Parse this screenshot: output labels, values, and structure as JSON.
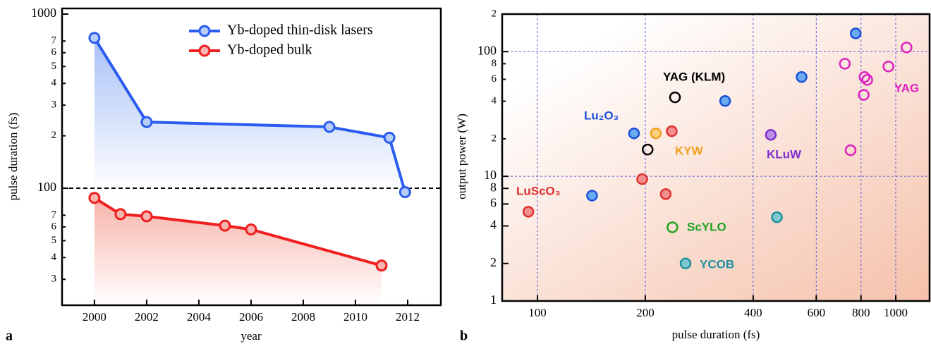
{
  "chart_data": [
    {
      "type": "line",
      "panel_label": "a",
      "xlabel": "year",
      "ylabel": "pulse duration (fs)",
      "log_y": true,
      "xlim": [
        1998.76,
        2013.27
      ],
      "ylim": [
        21.3,
        1077
      ],
      "xticks": [
        2000,
        2002,
        2004,
        2006,
        2008,
        2010,
        2012
      ],
      "yticks": [
        {
          "value": 30,
          "label": "3"
        },
        {
          "value": 40,
          "label": "4"
        },
        {
          "value": 50,
          "label": "5"
        },
        {
          "value": 60,
          "label": "6"
        },
        {
          "value": 70,
          "label": "7"
        },
        100,
        {
          "value": 200,
          "label": "2"
        },
        {
          "value": 300,
          "label": "3"
        },
        {
          "value": 400,
          "label": "4"
        },
        {
          "value": 500,
          "label": "5"
        },
        {
          "value": 600,
          "label": "6"
        },
        {
          "value": 700,
          "label": "7"
        },
        1000
      ],
      "reference_line": 100,
      "legend": "upper right",
      "series": [
        {
          "name": "Yb-doped thin-disk lasers",
          "color": "#2a5cf0",
          "fill": "#b8cdf8",
          "x": [
            2000,
            2002,
            2009,
            2011.3,
            2011.9
          ],
          "values": [
            730,
            240,
            225,
            195,
            95
          ]
        },
        {
          "name": "Yb-doped bulk",
          "color": "#f01e1e",
          "fill": "#f8b4ae",
          "x": [
            2000,
            2001,
            2002,
            2005,
            2006,
            2011
          ],
          "values": [
            88,
            71,
            69,
            61,
            58,
            36
          ]
        }
      ]
    },
    {
      "type": "scatter",
      "panel_label": "b",
      "xlabel": "pulse duration (fs)",
      "ylabel": "output power (W)",
      "log_x": true,
      "log_y": true,
      "grid": true,
      "xlim": [
        79.7,
        1243
      ],
      "ylim": [
        1,
        200
      ],
      "xticks": [
        100,
        200,
        400,
        600,
        800,
        1000
      ],
      "yticks": [
        1,
        2,
        4,
        6,
        8,
        10,
        {
          "value": 20,
          "label": "2"
        },
        {
          "value": 40,
          "label": "4"
        },
        {
          "value": 60,
          "label": "6"
        },
        {
          "value": 80,
          "label": "8"
        },
        100,
        {
          "value": 200,
          "label": "2"
        }
      ],
      "series": [
        {
          "name": "Lu₂O₃",
          "color": "#1a50d8",
          "fill": "#6aaaf0",
          "x": [
            186,
            334,
            546,
            773,
            142
          ],
          "values": [
            22.1,
            40.2,
            62.6,
            140,
            7.0
          ]
        },
        {
          "name": "YAG (KLM)",
          "color": "#000000",
          "fill": "none",
          "x": [
            242,
            203
          ],
          "values": [
            43,
            16.4
          ]
        },
        {
          "name": "KYW",
          "color": "#f0a020",
          "fill": "#f8d080",
          "x": [
            214
          ],
          "values": [
            22.1
          ]
        },
        {
          "name": "LuScO₃",
          "color": "#e03030",
          "fill": "#f09090",
          "x": [
            94.3,
            196,
            228,
            237
          ],
          "values": [
            5.2,
            9.5,
            7.2,
            23.0
          ]
        },
        {
          "name": "ScYLO",
          "color": "#20a020",
          "fill": "none",
          "x": [
            238
          ],
          "values": [
            3.9
          ]
        },
        {
          "name": "YCOB",
          "color": "#2090a0",
          "fill": "#80c8d0",
          "x": [
            259,
            466
          ],
          "values": [
            2.0,
            4.7
          ]
        },
        {
          "name": "KLuW",
          "color": "#8030d0",
          "fill": "#b890e8",
          "x": [
            448
          ],
          "values": [
            21.5
          ]
        },
        {
          "name": "YAG",
          "color": "#e020c0",
          "fill": "none",
          "x": [
            721,
            818,
            833,
            814,
            954,
            1072,
            748
          ],
          "values": [
            80,
            62.6,
            59.4,
            45,
            76,
            108,
            16.2
          ]
        }
      ]
    }
  ]
}
